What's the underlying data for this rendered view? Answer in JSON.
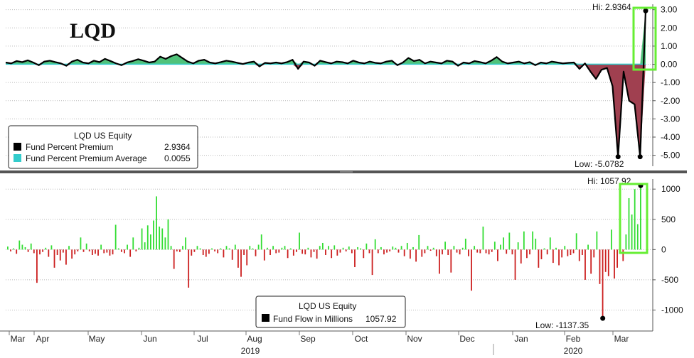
{
  "title": "LQD",
  "colors": {
    "premium_line": "#000000",
    "average_line": "#33cccc",
    "pos_fill": "#3dbb6b",
    "neg_fill": "#a04050",
    "flow_pos": "#33dd33",
    "flow_neg": "#cc1f1f",
    "highlight": "#66ee33",
    "grid": "#b9b9b9",
    "divider": "#555555"
  },
  "x_axis": {
    "months": [
      "Mar",
      "Apr",
      "May",
      "Jun",
      "Jul",
      "Aug",
      "Sep",
      "Oct",
      "Nov",
      "Dec",
      "Jan",
      "Feb",
      "Mar"
    ],
    "years": [
      "2019",
      "2020"
    ]
  },
  "chart_data": [
    {
      "type": "area",
      "legend_title": "LQD US Equity",
      "series": [
        {
          "name": "Fund Percent Premium",
          "last_value": "2.9364"
        },
        {
          "name": "Fund Percent Premium Average",
          "last_value": "0.0055"
        }
      ],
      "ylim": [
        -5.6,
        3.3
      ],
      "yticks": [
        "3.00",
        "2.00",
        "1.00",
        "0.00",
        "-1.00",
        "-2.00",
        "-3.00",
        "-4.00",
        "-5.00"
      ],
      "hi_label": "Hi: 2.9364",
      "low_label": "Low: -5.0782",
      "values": [
        0.1,
        0.05,
        0.18,
        0.12,
        0.22,
        0.1,
        -0.05,
        0.15,
        0.2,
        0.12,
        0.05,
        -0.08,
        0.15,
        0.25,
        0.1,
        0.05,
        0.2,
        0.12,
        0.3,
        0.18,
        0.05,
        -0.05,
        0.1,
        0.18,
        0.28,
        0.2,
        0.1,
        0.15,
        0.42,
        0.3,
        0.45,
        0.55,
        0.35,
        0.15,
        0.05,
        0.2,
        0.25,
        0.1,
        0.05,
        0.12,
        0.2,
        0.15,
        0.08,
        0.02,
        0.1,
        0.15,
        -0.12,
        0.08,
        0.05,
        0.1,
        0.05,
        0.12,
        0.25,
        -0.25,
        0.15,
        0.1,
        -0.08,
        0.2,
        0.12,
        0.05,
        0.15,
        0.12,
        0.05,
        0.2,
        0.1,
        0.05,
        0.15,
        0.08,
        0.05,
        0.15,
        0.2,
        -0.05,
        0.1,
        0.35,
        0.18,
        0.25,
        0.05,
        0.15,
        0.1,
        0.05,
        0.2,
        0.15,
        -0.08,
        0.1,
        0.05,
        0.18,
        0.12,
        0.05,
        0.2,
        0.4,
        0.15,
        0.05,
        0.1,
        0.15,
        0.05,
        0.12,
        -0.05,
        0.1,
        0.05,
        0.15,
        0.1,
        0.05,
        0.08,
        0.1,
        -0.25,
        0.05,
        -0.4,
        -0.8,
        -0.3,
        -0.2,
        -1.2,
        -5.08,
        -0.4,
        -2.0,
        -2.2,
        -5.08,
        2.94
      ],
      "average": 0.0055
    },
    {
      "type": "bar",
      "legend_title": "LQD US Equity",
      "series_name": "Fund Flow in Millions",
      "last_value": "1057.92",
      "ylim": [
        -1300,
        1120
      ],
      "yticks": [
        "1000",
        "500",
        "0",
        "-500",
        "-1000"
      ],
      "hi_label": "Hi: 1057.92",
      "low_label": "Low: -1137.35",
      "values": [
        50,
        -30,
        20,
        -70,
        150,
        80,
        40,
        -40,
        100,
        -60,
        -550,
        -80,
        -40,
        30,
        -120,
        70,
        -300,
        -90,
        -180,
        -50,
        -250,
        60,
        -150,
        -80,
        -30,
        200,
        -40,
        100,
        -30,
        -90,
        -70,
        -100,
        80,
        -60,
        -50,
        -100,
        -80,
        410,
        20,
        -40,
        -60,
        80,
        -120,
        200,
        -30,
        30,
        350,
        120,
        400,
        250,
        480,
        880,
        380,
        350,
        200,
        500,
        60,
        -320,
        -30,
        -40,
        60,
        200,
        -630,
        -100,
        -40,
        60,
        20,
        -90,
        -120,
        -70,
        20,
        -30,
        -60,
        20,
        -130,
        60,
        20,
        -170,
        80,
        -300,
        -450,
        -90,
        -260,
        60,
        20,
        -110,
        80,
        250,
        -180,
        30,
        -90,
        60,
        -60,
        -50,
        30,
        60,
        -140,
        20,
        -100,
        -40,
        280,
        -70,
        -80,
        30,
        -130,
        -40,
        -150,
        60,
        110,
        -90,
        60,
        -140,
        70,
        -100,
        -50,
        30,
        -30,
        50,
        -60,
        -290,
        40,
        20,
        -140,
        100,
        -60,
        -420,
        170,
        -60,
        40,
        -80,
        -50,
        -30,
        50,
        30,
        -50,
        60,
        -110,
        110,
        -150,
        40,
        -200,
        240,
        -120,
        -60,
        60,
        -20,
        30,
        -110,
        -400,
        -80,
        130,
        -90,
        -380,
        60,
        -50,
        -80,
        30,
        180,
        -110,
        -680,
        60,
        -50,
        -60,
        380,
        -60,
        -80,
        -40,
        130,
        -190,
        80,
        200,
        -70,
        280,
        -80,
        -500,
        120,
        -230,
        300,
        -140,
        -80,
        300,
        180,
        -300,
        -160,
        20,
        -80,
        200,
        -220,
        30,
        -260,
        -130,
        60,
        -110,
        -90,
        -60,
        270,
        -190,
        -90,
        -500,
        80,
        -400,
        -130,
        300,
        -570,
        -1137.35,
        -370,
        -440,
        330,
        -480,
        -300,
        120,
        -190,
        250,
        850,
        580,
        1000,
        420,
        1057.92
      ]
    }
  ]
}
